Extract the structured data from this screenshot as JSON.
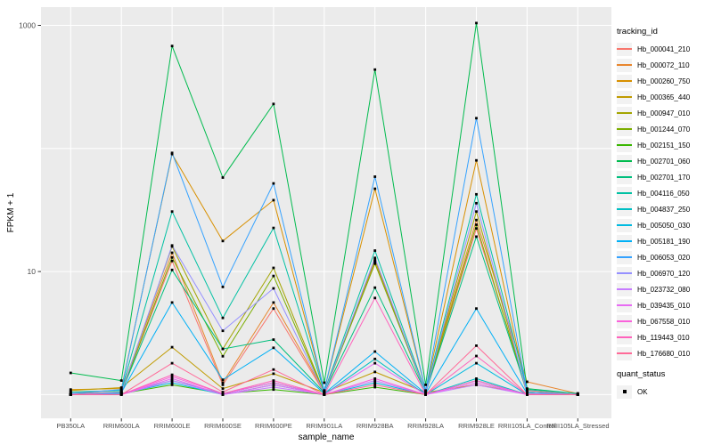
{
  "figure": {
    "bg": "#FFFFFF",
    "panel_bg": "#EBEBEB",
    "grid_color": "#FFFFFF",
    "tick_color": "#333333",
    "tick_label_color": "#4D4D4D",
    "axis_title_color": "#000000",
    "point_color": "#000000"
  },
  "legend": {
    "tracking_title": "tracking_id",
    "quant_title": "quant_status",
    "quant_items": [
      {
        "label": "OK",
        "shape": "filled-square",
        "color": "#000000"
      }
    ],
    "key_bg": "#F2F2F2",
    "position": "right"
  },
  "chart_data": {
    "type": "line",
    "title": "",
    "xlabel": "sample_name",
    "ylabel": "FPKM + 1",
    "y_scale": "log10",
    "ylim": [
      0.65,
      1400
    ],
    "y_tick_values": [
      10,
      1000
    ],
    "y_tick_labels": [
      "10",
      "1000"
    ],
    "y_gridline_values": [
      1,
      10,
      100,
      1000
    ],
    "grid": "major-only",
    "legend_position": "right",
    "point_shape": "filled-square",
    "categories": [
      "PB350LA",
      "RRIM600LA",
      "RRIM600LE",
      "RRIM600SE",
      "RRIM600PE",
      "RRIM901LA",
      "RRIM928BA",
      "RRIM928LA",
      "RRIM928LE",
      "RRII105LA_Control",
      "RRII105LA_Stressed"
    ],
    "series": [
      {
        "name": "Hb_000041_210",
        "color": "#F8766D",
        "values": [
          1.02,
          1.05,
          12.2,
          1.2,
          5.0,
          1.03,
          12.0,
          1.03,
          22.4,
          1.08,
          1.0
        ]
      },
      {
        "name": "Hb_000072_110",
        "color": "#E8862D",
        "values": [
          1.05,
          1.08,
          14.2,
          1.25,
          5.6,
          1.05,
          12.2,
          1.05,
          26.2,
          1.27,
          1.02
        ]
      },
      {
        "name": "Hb_000260_750",
        "color": "#D89000",
        "values": [
          1.1,
          1.12,
          90,
          17.7,
          38,
          1.08,
          47,
          1.08,
          80,
          1.05,
          1.0
        ]
      },
      {
        "name": "Hb_000365_440",
        "color": "#C09B00",
        "values": [
          1.08,
          1.14,
          2.43,
          1.12,
          1.48,
          1.04,
          1.53,
          1.04,
          1.2,
          1.02,
          1.0
        ]
      },
      {
        "name": "Hb_000947_010",
        "color": "#A3A500",
        "values": [
          1.0,
          1.05,
          16,
          2.35,
          10.7,
          1.04,
          12.5,
          1.04,
          30.7,
          1.02,
          1.0
        ]
      },
      {
        "name": "Hb_001244_070",
        "color": "#7CAE00",
        "values": [
          1.0,
          1.04,
          13,
          2.05,
          9.2,
          1.03,
          11.6,
          1.03,
          24,
          1.02,
          1.0
        ]
      },
      {
        "name": "Hb_002151_150",
        "color": "#39B600",
        "values": [
          1.0,
          1.02,
          1.2,
          1.02,
          1.1,
          1.0,
          1.15,
          1.0,
          1.3,
          1.0,
          1.0
        ]
      },
      {
        "name": "Hb_002701_060",
        "color": "#00BB4E",
        "values": [
          1.5,
          1.3,
          680,
          58,
          230,
          1.25,
          437,
          1.2,
          1045,
          1.12,
          1.02
        ]
      },
      {
        "name": "Hb_002701_170",
        "color": "#00BF7D",
        "values": [
          1.0,
          1.05,
          10.3,
          2.35,
          2.8,
          1.04,
          7.4,
          1.04,
          19.2,
          1.05,
          1.0
        ]
      },
      {
        "name": "Hb_004116_050",
        "color": "#00C1A3",
        "values": [
          1.05,
          1.08,
          30.7,
          4.2,
          22.6,
          1.06,
          14.8,
          1.06,
          42.4,
          1.1,
          1.02
        ]
      },
      {
        "name": "Hb_004837_250",
        "color": "#00BFC4",
        "values": [
          1.0,
          1.02,
          1.3,
          1.02,
          1.25,
          1.0,
          1.95,
          1.0,
          1.35,
          1.0,
          1.0
        ]
      },
      {
        "name": "Hb_005050_030",
        "color": "#00BAE0",
        "values": [
          1.0,
          1.02,
          1.25,
          1.0,
          1.2,
          1.0,
          1.25,
          1.0,
          1.8,
          1.0,
          1.0
        ]
      },
      {
        "name": "Hb_005181_190",
        "color": "#00B0F6",
        "values": [
          1.0,
          1.04,
          5.6,
          1.32,
          2.4,
          1.02,
          2.24,
          1.02,
          5.0,
          1.02,
          1.0
        ]
      },
      {
        "name": "Hb_006053_020",
        "color": "#35A2FF",
        "values": [
          1.02,
          1.1,
          92,
          7.5,
          52,
          1.08,
          59,
          1.08,
          176,
          1.05,
          1.0
        ]
      },
      {
        "name": "Hb_006970_120",
        "color": "#9590FF",
        "values": [
          1.0,
          1.04,
          16.3,
          3.3,
          7.3,
          1.03,
          12.9,
          1.03,
          35.9,
          1.02,
          1.0
        ]
      },
      {
        "name": "Hb_023732_080",
        "color": "#C77CFF",
        "values": [
          1.0,
          1.0,
          1.3,
          1.0,
          1.15,
          1.0,
          1.3,
          1.0,
          1.2,
          1.0,
          1.0
        ]
      },
      {
        "name": "Hb_039435_010",
        "color": "#E76BF3",
        "values": [
          1.0,
          1.0,
          1.35,
          1.0,
          1.2,
          1.0,
          1.8,
          1.0,
          1.25,
          1.0,
          1.0
        ]
      },
      {
        "name": "Hb_067558_010",
        "color": "#FA62DB",
        "values": [
          1.0,
          1.0,
          1.4,
          1.02,
          1.25,
          1.0,
          1.35,
          1.0,
          1.3,
          1.0,
          1.0
        ]
      },
      {
        "name": "Hb_119443_010",
        "color": "#FF62BC",
        "values": [
          1.0,
          1.0,
          1.45,
          1.02,
          1.3,
          1.0,
          6.1,
          1.0,
          2.06,
          1.0,
          1.0
        ]
      },
      {
        "name": "Hb_176680_010",
        "color": "#FF6A98",
        "values": [
          1.0,
          1.0,
          1.8,
          1.05,
          1.6,
          1.0,
          1.2,
          1.0,
          2.5,
          1.0,
          1.0
        ]
      }
    ]
  }
}
